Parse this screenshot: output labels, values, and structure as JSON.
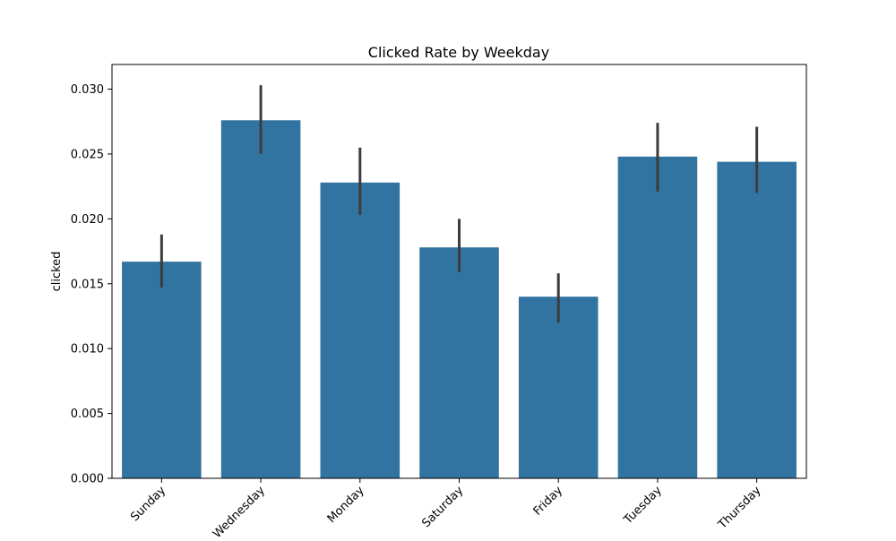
{
  "chart_data": {
    "type": "bar",
    "title": "Clicked Rate by Weekday",
    "xlabel": "",
    "ylabel": "clicked",
    "categories": [
      "Sunday",
      "Wednesday",
      "Monday",
      "Saturday",
      "Friday",
      "Tuesday",
      "Thursday"
    ],
    "values": [
      0.0167,
      0.0276,
      0.0228,
      0.0178,
      0.014,
      0.0248,
      0.0244
    ],
    "error_low": [
      0.0147,
      0.025,
      0.0203,
      0.0159,
      0.012,
      0.0221,
      0.022
    ],
    "error_high": [
      0.0188,
      0.0303,
      0.0255,
      0.02,
      0.0158,
      0.0274,
      0.0271
    ],
    "ylim": [
      0,
      0.0319
    ],
    "yticks": [
      "0.000",
      "0.005",
      "0.010",
      "0.015",
      "0.020",
      "0.025",
      "0.030"
    ],
    "ytick_values": [
      0,
      0.005,
      0.01,
      0.015,
      0.02,
      0.025,
      0.03
    ],
    "grid": false,
    "colors": {
      "bar": "#3274a1",
      "error_bar": "#3c3c3c",
      "axis": "#000000"
    }
  }
}
